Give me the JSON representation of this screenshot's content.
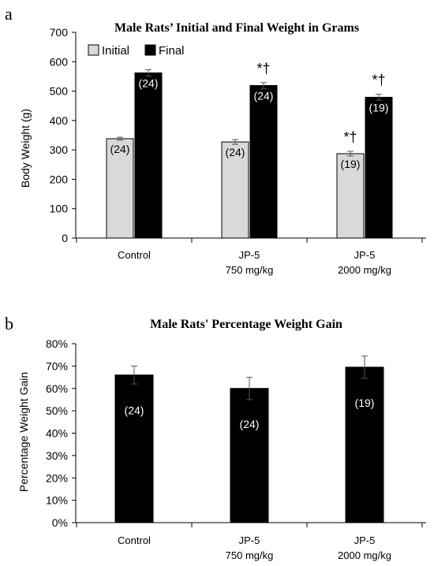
{
  "chart_data": [
    {
      "panel": "a",
      "type": "bar",
      "title": "Male Rats’ Initial and Final Weight in Grams",
      "ylabel": "Body Weight (g)",
      "xlabel": "",
      "ylim": [
        0,
        700
      ],
      "yticks": [
        "0",
        "100",
        "200",
        "300",
        "400",
        "500",
        "600",
        "700"
      ],
      "grid": false,
      "legend_position": "top-left",
      "categories": [
        [
          "Control"
        ],
        [
          "JP-5",
          "750 mg/kg"
        ],
        [
          "JP-5",
          "2000 mg/kg"
        ]
      ],
      "series": [
        {
          "name": "Initial",
          "color": "#d9d9d9",
          "values": [
            338,
            327,
            287
          ],
          "errors": [
            5,
            8,
            8
          ],
          "n_labels": [
            "(24)",
            "(24)",
            "(19)"
          ],
          "annotations": [
            "",
            "",
            "*†"
          ]
        },
        {
          "name": "Final",
          "color": "#000000",
          "values": [
            562,
            519,
            479
          ],
          "errors": [
            11,
            10,
            10
          ],
          "n_labels": [
            "(24)",
            "(24)",
            "(19)"
          ],
          "annotations": [
            "",
            "*†",
            "*†"
          ]
        }
      ]
    },
    {
      "panel": "b",
      "type": "bar",
      "title": "Male Rats' Percentage Weight Gain",
      "ylabel": "Percentage Weight Gain",
      "xlabel": "",
      "ylim": [
        0,
        80
      ],
      "yticks": [
        "0%",
        "10%",
        "20%",
        "30%",
        "40%",
        "50%",
        "60%",
        "70%",
        "80%"
      ],
      "grid": false,
      "categories": [
        [
          "Control"
        ],
        [
          "JP-5",
          "750 mg/kg"
        ],
        [
          "JP-5",
          "2000 mg/kg"
        ]
      ],
      "series": [
        {
          "color": "#000000",
          "values": [
            66,
            60,
            69.5
          ],
          "errors": [
            4,
            5,
            5
          ],
          "n_labels": [
            "(24)",
            "(24)",
            "(19)"
          ]
        }
      ]
    }
  ]
}
